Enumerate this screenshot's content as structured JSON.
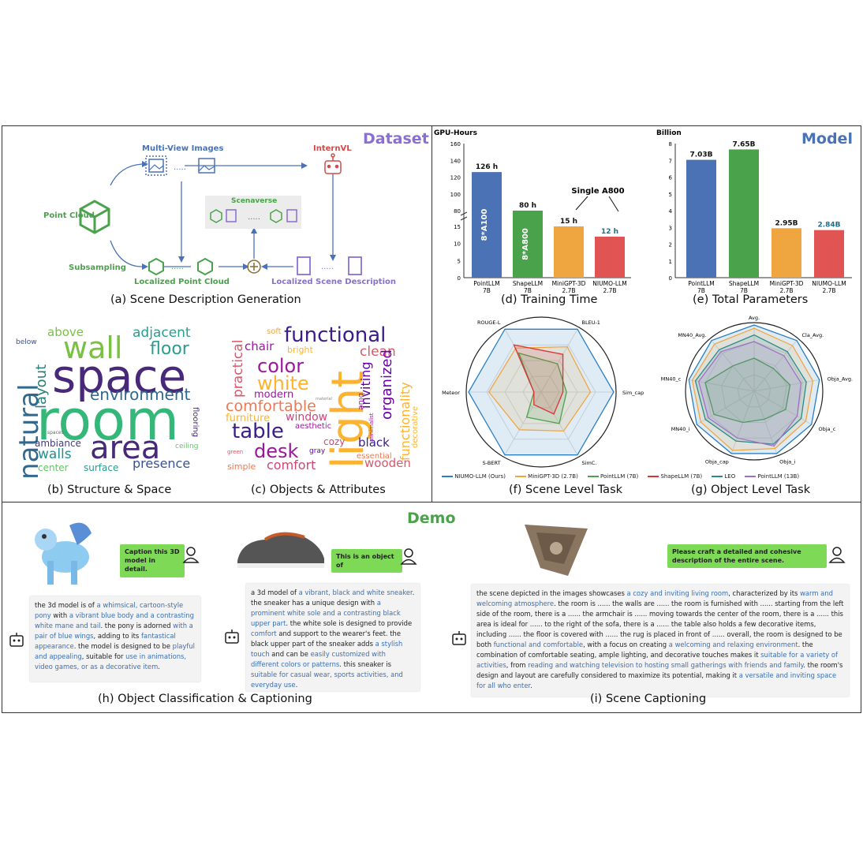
{
  "sections": {
    "dataset": "Dataset",
    "model": "Model",
    "demo": "Demo"
  },
  "colors": {
    "dataset_purple": "#8a6fd1",
    "model_blue": "#4a72b5",
    "demo_green": "#4aa24a",
    "niumo": "#e05454",
    "minigpt": "#f0a640",
    "pointllm": "#4aa24a",
    "shapellm": "#d33",
    "leo": "#2a8a8a",
    "pointllm13b": "#a070c8"
  },
  "dataset_flow": {
    "multi_view": "Multi-View Images",
    "internvl": "InternVL",
    "point_cloud": "Point Cloud",
    "scenaverse": "Scenaverse",
    "subsampling": "Subsampling",
    "localized_pc": "Localized Point Cloud",
    "localized_desc": "Localized Scene Description",
    "caption": "(a) Scene Description Generation"
  },
  "wordcloud_b": {
    "caption": "(b) Structure & Space",
    "words": [
      "above",
      "adjacent",
      "below",
      "wall",
      "floor",
      "space",
      "layout",
      "natural",
      "room",
      "environment",
      "area",
      "ambiance",
      "walls",
      "center",
      "surface",
      "presence",
      "flooring",
      "ceiling",
      "spaces"
    ]
  },
  "wordcloud_c": {
    "caption": "(c) Objects & Attributes",
    "words": [
      "soft",
      "functional",
      "chair",
      "bright",
      "clean",
      "practical",
      "color",
      "white",
      "light",
      "modern",
      "inviting",
      "organized",
      "functionality",
      "comfortable",
      "furniture",
      "window",
      "aesthetic",
      "table",
      "decorative",
      "blue",
      "desk",
      "cozy",
      "black",
      "gray",
      "minimalist",
      "green",
      "simple",
      "comfort",
      "essential",
      "wooden",
      "material"
    ]
  },
  "chart_data": [
    {
      "type": "bar",
      "title": "(d) Training Time",
      "ylabel": "GPU-Hours",
      "categories": [
        "PointLLM 7B",
        "ShapeLLM 7B",
        "MiniGPT-3D 2.7B",
        "NIUMO-LLM 2.7B"
      ],
      "values": [
        126,
        80,
        15,
        12
      ],
      "value_labels": [
        "126 h",
        "80 h",
        "15 h",
        "12 h"
      ],
      "bar_texts": [
        "8*A100",
        "8*A800",
        "",
        ""
      ],
      "annotation": "Single A800",
      "yticks_upper": [
        80,
        100,
        120,
        140,
        160
      ],
      "yticks_lower": [
        0,
        5,
        10,
        15
      ],
      "broken_axis": true
    },
    {
      "type": "bar",
      "title": "(e) Total Parameters",
      "ylabel": "Billion",
      "categories": [
        "PointLLM 7B",
        "ShapeLLM 7B",
        "MiniGPT-3D 2.7B",
        "NIUMO-LLM 2.7B"
      ],
      "values": [
        7.03,
        7.65,
        2.95,
        2.84
      ],
      "value_labels": [
        "7.03B",
        "7.65B",
        "2.95B",
        "2.84B"
      ],
      "ylim": [
        0,
        8
      ],
      "yticks": [
        0,
        1,
        2,
        3,
        4,
        5,
        6,
        7,
        8
      ]
    },
    {
      "type": "radar",
      "title": "(f) Scene Level Task",
      "axes": [
        "BLEU-1",
        "Sim_cap",
        "SimC.",
        "S-BERT",
        "Meteor",
        "ROUGE-L"
      ],
      "series": [
        {
          "name": "NIUMO-LLM (Ours)",
          "values": [
            1,
            1,
            1,
            1,
            1,
            1
          ]
        },
        {
          "name": "MiniGPT-3D (2.7B)",
          "values": [
            0.72,
            0.68,
            0.62,
            0.6,
            0.72,
            0.7
          ]
        },
        {
          "name": "PointLLM (7B)",
          "values": [
            0.45,
            0.35,
            0.5,
            0.4,
            0.1,
            0.62
          ]
        },
        {
          "name": "ShapeLLM (7B)",
          "values": [
            0.6,
            0.3,
            0.35,
            0.2,
            0.1,
            0.75
          ]
        }
      ]
    },
    {
      "type": "radar",
      "title": "(g) Object Level Task",
      "axes": [
        "Avg.",
        "Cla_Avg.",
        "Obja_Avg.",
        "Obja_c",
        "Obja_i",
        "Obja_cap",
        "MN40_i",
        "MN40_c",
        "MN40_Avg."
      ],
      "series": [
        {
          "name": "NIUMO-LLM (Ours)",
          "values": [
            1,
            1,
            1,
            1,
            1,
            1,
            1,
            1,
            1
          ]
        },
        {
          "name": "MiniGPT-3D (2.7B)",
          "values": [
            0.95,
            0.9,
            0.9,
            0.9,
            0.92,
            0.95,
            0.93,
            0.95,
            0.93
          ]
        },
        {
          "name": "PointLLM (7B)",
          "values": [
            0.5,
            0.45,
            0.55,
            0.55,
            0.45,
            0.5,
            0.7,
            0.75,
            0.5
          ]
        },
        {
          "name": "LEO",
          "values": [
            0.85,
            0.78,
            0.8,
            0.82,
            0.85,
            0.8,
            0.85,
            0.9,
            0.82
          ]
        },
        {
          "name": "PointLLM (13B)",
          "values": [
            0.75,
            0.7,
            0.72,
            0.75,
            0.88,
            0.75,
            0.8,
            0.85,
            0.78
          ]
        }
      ]
    }
  ],
  "legend": [
    "NIUMO-LLM (Ours)",
    "MiniGPT-3D (2.7B)",
    "PointLLM (7B)",
    "ShapeLLM (7B)",
    "LEO",
    "PointLLM (13B)"
  ],
  "demo": {
    "caption_h": "(h) Object Classification & Captioning",
    "caption_i": "(i) Scene Captioning",
    "q1": "Caption this 3D model in detail.",
    "q2": "This is an object of",
    "q3": "Please craft a detailed and cohesive description of the entire scene."
  }
}
